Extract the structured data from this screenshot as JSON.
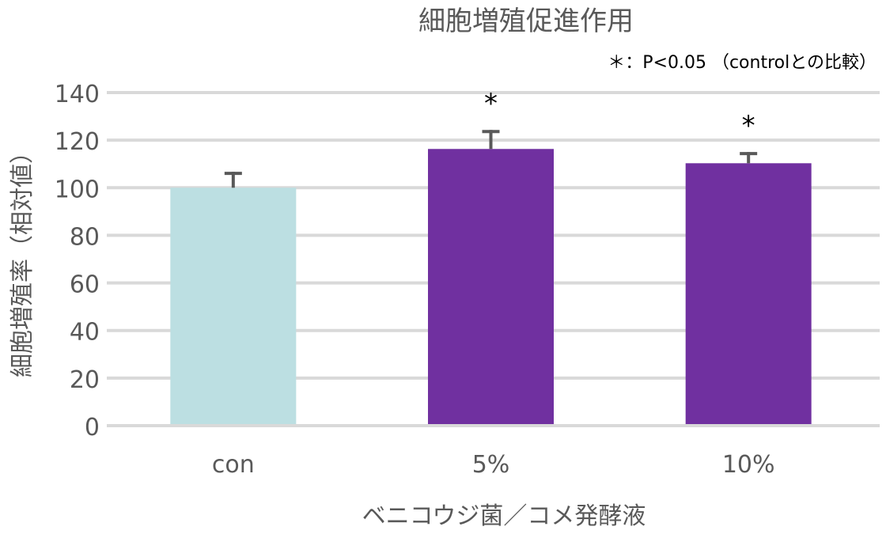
{
  "chart_data": {
    "type": "bar",
    "title": "細胞増殖促進作用",
    "annotation": "＊：P<0.05 （controlとの比較）",
    "xlabel": "ベニコウジ菌／コメ発酵液",
    "ylabel": "細胞増殖率（相対値）",
    "categories": [
      "con",
      "5%",
      "10%"
    ],
    "values": [
      100,
      116.3,
      110.3
    ],
    "error_upper": [
      6.7,
      8.0,
      4.7
    ],
    "significance": [
      "",
      "*",
      "*"
    ],
    "colors": [
      "#BCDFE2",
      "#7030A0",
      "#7030A0"
    ],
    "ylim": [
      0,
      140
    ],
    "yticks": [
      0,
      20,
      40,
      60,
      80,
      100,
      120,
      140
    ],
    "grid": true,
    "grid_color": "#D9D9D9",
    "error_color": "#595959",
    "text_color": "#595959"
  }
}
